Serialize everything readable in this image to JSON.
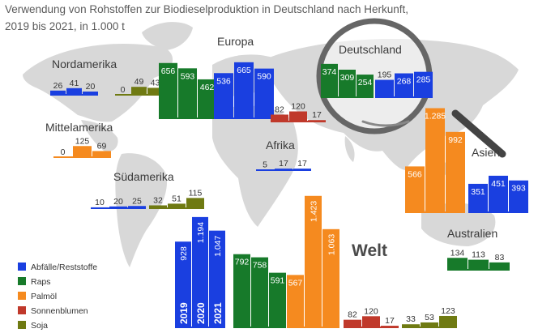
{
  "title_line1": "Verwendung von Rohstoffen zur Biodieselproduktion in Deutschland nach Herkunft,",
  "title_line2": "2019 bis 2021, in 1.000 t",
  "legend": [
    {
      "label": "Abfälle/Reststoffe",
      "color": "#1a3fe0"
    },
    {
      "label": "Raps",
      "color": "#177a2a"
    },
    {
      "label": "Palmöl",
      "color": "#f58a1f"
    },
    {
      "label": "Sonnenblumen",
      "color": "#c0392b"
    },
    {
      "label": "Soja",
      "color": "#6f7a12"
    }
  ],
  "chart_data": {
    "type": "bar",
    "title": "Verwendung von Rohstoffen zur Biodieselproduktion in Deutschland nach Herkunft, 2019 bis 2021, in 1.000 t",
    "years": [
      "2019",
      "2020",
      "2021"
    ],
    "regions": [
      {
        "name": "Nordamerika",
        "series": [
          {
            "name": "Abfälle/Reststoffe",
            "values": [
              26,
              41,
              20
            ]
          },
          {
            "name": "Soja",
            "values": [
              0,
              49,
              43
            ]
          }
        ]
      },
      {
        "name": "Europa",
        "series": [
          {
            "name": "Raps",
            "values": [
              656,
              593,
              462
            ]
          },
          {
            "name": "Abfälle/Reststoffe",
            "values": [
              536,
              665,
              590
            ]
          },
          {
            "name": "Sonnenblumen",
            "values": [
              82,
              120,
              17
            ]
          }
        ]
      },
      {
        "name": "Deutschland",
        "series": [
          {
            "name": "Raps",
            "values": [
              374,
              309,
              254
            ]
          },
          {
            "name": "Abfälle/Reststoffe",
            "values": [
              195,
              268,
              285
            ]
          }
        ]
      },
      {
        "name": "Mittelamerika",
        "series": [
          {
            "name": "Palmöl",
            "values": [
              0,
              125,
              69
            ]
          }
        ]
      },
      {
        "name": "Afrika",
        "series": [
          {
            "name": "Abfälle/Reststoffe",
            "values": [
              5,
              17,
              17
            ]
          }
        ]
      },
      {
        "name": "Südamerika",
        "series": [
          {
            "name": "Abfälle/Reststoffe",
            "values": [
              10,
              20,
              25
            ]
          },
          {
            "name": "Soja",
            "values": [
              32,
              51,
              115
            ]
          }
        ]
      },
      {
        "name": "Asien",
        "series": [
          {
            "name": "Palmöl",
            "values": [
              566,
              1285,
              992
            ]
          },
          {
            "name": "Abfälle/Reststoffe",
            "values": [
              351,
              451,
              393
            ]
          }
        ]
      },
      {
        "name": "Australien",
        "series": [
          {
            "name": "Raps",
            "values": [
              134,
              113,
              83
            ]
          }
        ]
      },
      {
        "name": "Welt",
        "series": [
          {
            "name": "Abfälle/Reststoffe",
            "values": [
              928,
              1194,
              1047
            ]
          },
          {
            "name": "Raps",
            "values": [
              792,
              758,
              591
            ]
          },
          {
            "name": "Palmöl",
            "values": [
              567,
              1423,
              1063
            ]
          },
          {
            "name": "Sonnenblumen",
            "values": [
              82,
              120,
              17
            ]
          },
          {
            "name": "Soja",
            "values": [
              33,
              53,
              123
            ]
          }
        ]
      }
    ],
    "number_format": "German thousands separator (1.285)"
  }
}
